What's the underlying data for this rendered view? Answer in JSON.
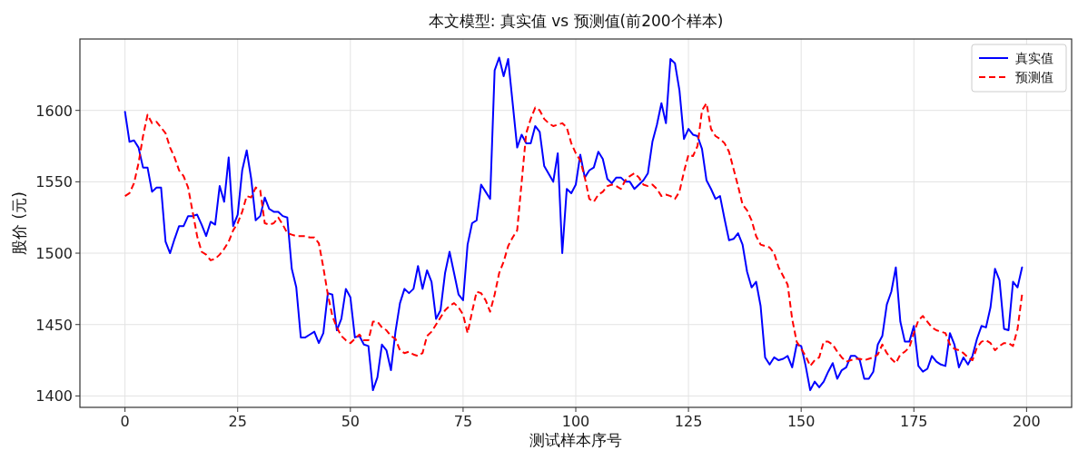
{
  "chart_data": {
    "type": "line",
    "title": "本文模型: 真实值 vs 预测值(前200个样本)",
    "xlabel": "测试样本序号",
    "ylabel": "股价 (元)",
    "xlim": [
      -10,
      210
    ],
    "ylim": [
      1392,
      1650
    ],
    "xticks": [
      0,
      25,
      50,
      75,
      100,
      125,
      150,
      175,
      200
    ],
    "yticks": [
      1400,
      1450,
      1500,
      1550,
      1600
    ],
    "grid": true,
    "legend": "top right",
    "series": [
      {
        "name": "真实值",
        "color": "#0000ff",
        "line_style": "solid",
        "x": [
          0,
          1,
          2,
          3,
          4,
          5,
          6,
          7,
          8,
          9,
          10,
          11,
          12,
          13,
          14,
          15,
          16,
          17,
          18,
          19,
          20,
          21,
          22,
          23,
          24,
          25,
          26,
          27,
          28,
          29,
          30,
          31,
          32,
          33,
          34,
          35,
          36,
          37,
          38,
          39,
          40,
          41,
          42,
          43,
          44,
          45,
          46,
          47,
          48,
          49,
          50,
          51,
          52,
          53,
          54,
          55,
          56,
          57,
          58,
          59,
          60,
          61,
          62,
          63,
          64,
          65,
          66,
          67,
          68,
          69,
          70,
          71,
          72,
          73,
          74,
          75,
          76,
          77,
          78,
          79,
          80,
          81,
          82,
          83,
          84,
          85,
          86,
          87,
          88,
          89,
          90,
          91,
          92,
          93,
          95,
          96,
          97,
          98,
          99,
          100,
          101,
          102,
          103,
          104,
          105,
          106,
          107,
          108,
          109,
          110,
          111,
          112,
          113,
          114,
          115,
          116,
          117,
          118,
          119,
          120,
          121,
          122,
          123,
          124,
          125,
          126,
          127,
          128,
          129,
          130,
          131,
          132,
          133,
          134,
          135,
          136,
          137,
          138,
          139,
          140,
          141,
          142,
          143,
          144,
          145,
          146,
          147,
          148,
          149,
          150,
          151,
          152,
          153,
          154,
          155,
          156,
          157,
          158,
          159,
          160,
          161,
          162,
          163,
          164,
          165,
          166,
          167,
          168,
          169,
          170,
          171,
          172,
          173,
          174,
          175,
          176,
          177,
          178,
          179,
          180,
          181,
          182,
          183,
          184,
          185,
          186,
          187,
          188,
          189,
          190,
          191,
          192,
          193,
          194,
          195,
          196,
          197,
          198,
          199
        ],
        "values": [
          1599,
          1578,
          1579,
          1574,
          1560,
          1560,
          1543,
          1546,
          1546,
          1508,
          1500,
          1510,
          1519,
          1519,
          1526,
          1526,
          1527,
          1520,
          1512,
          1522,
          1520,
          1547,
          1536,
          1567,
          1519,
          1527,
          1558,
          1572,
          1552,
          1523,
          1526,
          1539,
          1531,
          1529,
          1529,
          1526,
          1525,
          1489,
          1476,
          1441,
          1441,
          1443,
          1445,
          1437,
          1444,
          1472,
          1471,
          1446,
          1454,
          1475,
          1469,
          1441,
          1442,
          1436,
          1435,
          1404,
          1413,
          1436,
          1432,
          1418,
          1445,
          1465,
          1475,
          1472,
          1475,
          1491,
          1475,
          1488,
          1480,
          1454,
          1460,
          1486,
          1501,
          1486,
          1471,
          1467,
          1506,
          1521,
          1523,
          1548,
          1543,
          1538,
          1628,
          1637,
          1624,
          1636,
          1605,
          1574,
          1583,
          1577,
          1577,
          1589,
          1585,
          1561,
          1550,
          1570,
          1500,
          1545,
          1542,
          1548,
          1569,
          1553,
          1558,
          1560,
          1571,
          1566,
          1552,
          1549,
          1553,
          1553,
          1550,
          1550,
          1545,
          1548,
          1551,
          1556,
          1578,
          1590,
          1605,
          1591,
          1636,
          1633,
          1614,
          1580,
          1587,
          1583,
          1582,
          1573,
          1551,
          1545,
          1538,
          1540,
          1524,
          1509,
          1510,
          1514,
          1506,
          1487,
          1476,
          1480,
          1463,
          1427,
          1422,
          1427,
          1425,
          1426,
          1428,
          1420,
          1436,
          1435,
          1421,
          1404,
          1410,
          1406,
          1410,
          1417,
          1423,
          1412,
          1418,
          1420,
          1428,
          1428,
          1425,
          1412,
          1412,
          1417,
          1436,
          1442,
          1464,
          1473,
          1490,
          1452,
          1438,
          1438,
          1449,
          1421,
          1417,
          1419,
          1428,
          1424,
          1422,
          1421,
          1444,
          1436,
          1420,
          1427,
          1422,
          1428,
          1440,
          1449,
          1448,
          1462,
          1489,
          1481,
          1447,
          1446,
          1480,
          1476,
          1490
        ]
      },
      {
        "name": "预测值",
        "color": "#ff0000",
        "line_style": "dashed",
        "x": [
          0,
          1,
          2,
          3,
          4,
          5,
          6,
          7,
          8,
          9,
          10,
          11,
          12,
          13,
          14,
          15,
          16,
          17,
          18,
          19,
          20,
          21,
          22,
          23,
          24,
          25,
          26,
          27,
          28,
          29,
          30,
          31,
          32,
          33,
          34,
          35,
          36,
          37,
          38,
          39,
          40,
          41,
          42,
          43,
          44,
          45,
          46,
          47,
          48,
          49,
          50,
          51,
          52,
          53,
          54,
          55,
          56,
          57,
          58,
          59,
          60,
          61,
          62,
          63,
          64,
          65,
          66,
          67,
          68,
          69,
          70,
          71,
          72,
          73,
          74,
          75,
          76,
          77,
          78,
          79,
          80,
          81,
          82,
          83,
          84,
          85,
          86,
          87,
          88,
          89,
          90,
          91,
          92,
          93,
          94,
          95,
          96,
          97,
          98,
          99,
          100,
          101,
          102,
          103,
          104,
          105,
          106,
          107,
          108,
          109,
          110,
          111,
          112,
          113,
          114,
          115,
          116,
          117,
          118,
          119,
          120,
          121,
          122,
          123,
          124,
          125,
          126,
          127,
          128,
          129,
          130,
          131,
          132,
          133,
          134,
          135,
          136,
          137,
          138,
          139,
          140,
          141,
          142,
          143,
          144,
          145,
          146,
          147,
          148,
          149,
          151,
          152,
          153,
          154,
          155,
          156,
          157,
          158,
          159,
          160,
          161,
          162,
          163,
          164,
          165,
          166,
          167,
          168,
          169,
          170,
          171,
          172,
          173,
          174,
          175,
          176,
          177,
          178,
          179,
          180,
          181,
          182,
          183,
          184,
          185,
          186,
          187,
          188,
          189,
          190,
          191,
          192,
          193,
          194,
          195,
          196,
          197,
          198,
          199
        ],
        "values": [
          1540,
          1542,
          1549,
          1563,
          1582,
          1597,
          1591,
          1592,
          1588,
          1584,
          1574,
          1567,
          1558,
          1554,
          1546,
          1529,
          1512,
          1501,
          1499,
          1495,
          1496,
          1499,
          1503,
          1508,
          1516,
          1521,
          1529,
          1540,
          1539,
          1546,
          1544,
          1521,
          1520,
          1521,
          1525,
          1520,
          1514,
          1513,
          1512,
          1512,
          1512,
          1511,
          1511,
          1507,
          1490,
          1471,
          1456,
          1448,
          1442,
          1439,
          1437,
          1440,
          1443,
          1439,
          1439,
          1452,
          1452,
          1448,
          1446,
          1442,
          1440,
          1432,
          1430,
          1431,
          1429,
          1428,
          1430,
          1442,
          1445,
          1450,
          1455,
          1460,
          1463,
          1465,
          1462,
          1457,
          1444,
          1459,
          1473,
          1472,
          1467,
          1459,
          1471,
          1486,
          1494,
          1505,
          1511,
          1516,
          1550,
          1584,
          1594,
          1602,
          1600,
          1594,
          1591,
          1589,
          1590,
          1591,
          1588,
          1577,
          1570,
          1565,
          1553,
          1538,
          1536,
          1541,
          1543,
          1547,
          1548,
          1547,
          1545,
          1551,
          1554,
          1556,
          1553,
          1548,
          1547,
          1548,
          1545,
          1540,
          1541,
          1540,
          1538,
          1543,
          1557,
          1569,
          1568,
          1575,
          1600,
          1605,
          1587,
          1582,
          1580,
          1577,
          1571,
          1559,
          1547,
          1534,
          1530,
          1523,
          1512,
          1506,
          1505,
          1504,
          1500,
          1490,
          1484,
          1478,
          1454,
          1438,
          1428,
          1421,
          1425,
          1427,
          1438,
          1438,
          1436,
          1431,
          1427,
          1424,
          1425,
          1426,
          1426,
          1425,
          1426,
          1427,
          1429,
          1436,
          1430,
          1426,
          1423,
          1429,
          1431,
          1434,
          1444,
          1453,
          1456,
          1452,
          1448,
          1446,
          1445,
          1444,
          1436,
          1433,
          1432,
          1430,
          1427,
          1425,
          1434,
          1438,
          1439,
          1437,
          1432,
          1435,
          1437,
          1437,
          1435,
          1447,
          1471
        ]
      }
    ]
  }
}
